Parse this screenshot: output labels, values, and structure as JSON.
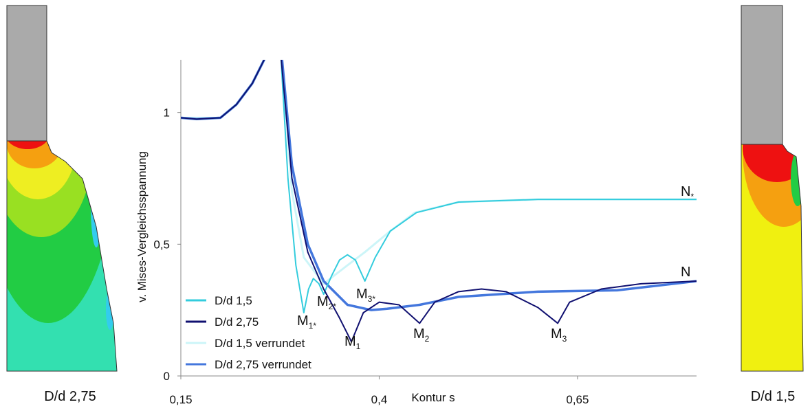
{
  "chart_data": {
    "type": "line",
    "ylabel": "v. Mises-Vergleichsspannung",
    "xlabel": "Kontur s",
    "xlim": [
      0.15,
      0.8
    ],
    "ylim": [
      0,
      1.2
    ],
    "xticks": [
      {
        "value": 0.15,
        "label": "0,15"
      },
      {
        "value": 0.4,
        "label": "0,4"
      },
      {
        "value": 0.65,
        "label": "0,65"
      }
    ],
    "yticks": [
      0,
      {
        "value": 0.5,
        "label": "0,5"
      },
      1
    ],
    "series": [
      {
        "name": "D/d 1,5",
        "color": "#33ccdd",
        "x": [
          0.15,
          0.17,
          0.2,
          0.22,
          0.24,
          0.255,
          0.265,
          0.27,
          0.276,
          0.285,
          0.295,
          0.305,
          0.311,
          0.317,
          0.324,
          0.33,
          0.34,
          0.35,
          0.36,
          0.37,
          0.382,
          0.395,
          0.414,
          0.447,
          0.5,
          0.6,
          0.7,
          0.8
        ],
        "values": [
          0.98,
          0.975,
          0.98,
          1.03,
          1.11,
          1.2,
          1.26,
          1.26,
          1.22,
          0.75,
          0.42,
          0.24,
          0.33,
          0.37,
          0.35,
          0.31,
          0.38,
          0.44,
          0.46,
          0.44,
          0.36,
          0.45,
          0.55,
          0.62,
          0.66,
          0.67,
          0.67,
          0.67
        ]
      },
      {
        "name": "D/d 2,75",
        "color": "#101070",
        "x": [
          0.15,
          0.17,
          0.2,
          0.22,
          0.24,
          0.255,
          0.265,
          0.27,
          0.276,
          0.29,
          0.31,
          0.33,
          0.35,
          0.365,
          0.38,
          0.4,
          0.425,
          0.451,
          0.47,
          0.5,
          0.529,
          0.56,
          0.6,
          0.625,
          0.64,
          0.68,
          0.73,
          0.8
        ],
        "values": [
          0.98,
          0.975,
          0.98,
          1.03,
          1.11,
          1.2,
          1.26,
          1.26,
          1.22,
          0.75,
          0.47,
          0.33,
          0.22,
          0.13,
          0.24,
          0.28,
          0.27,
          0.2,
          0.28,
          0.32,
          0.33,
          0.32,
          0.26,
          0.2,
          0.28,
          0.33,
          0.35,
          0.36
        ]
      },
      {
        "name": "D/d 1,5 verrundet",
        "color": "#ccf5f8",
        "x": [
          0.15,
          0.17,
          0.2,
          0.22,
          0.24,
          0.255,
          0.265,
          0.27,
          0.277,
          0.29,
          0.305,
          0.33,
          0.36,
          0.382,
          0.414,
          0.445,
          0.5,
          0.6,
          0.7,
          0.8
        ],
        "values": [
          0.98,
          0.98,
          0.98,
          1.03,
          1.11,
          1.2,
          1.26,
          1.26,
          1.22,
          0.7,
          0.45,
          0.35,
          0.42,
          0.47,
          0.55,
          0.62,
          0.66,
          0.67,
          0.67,
          0.67
        ]
      },
      {
        "name": "D/d 2,75 verrundet",
        "color": "#4477dd",
        "x": [
          0.15,
          0.17,
          0.2,
          0.22,
          0.24,
          0.255,
          0.265,
          0.27,
          0.277,
          0.29,
          0.31,
          0.33,
          0.36,
          0.39,
          0.41,
          0.451,
          0.5,
          0.6,
          0.7,
          0.8
        ],
        "values": [
          0.98,
          0.975,
          0.98,
          1.03,
          1.11,
          1.2,
          1.26,
          1.26,
          1.22,
          0.8,
          0.5,
          0.36,
          0.27,
          0.25,
          0.255,
          0.27,
          0.3,
          0.32,
          0.325,
          0.36
        ]
      }
    ],
    "annotations": [
      {
        "text": "M",
        "sub": "1*"
      },
      {
        "text": "M",
        "sub": "2*"
      },
      {
        "text": "M",
        "sub": "3*"
      },
      {
        "text": "M",
        "sub": "1"
      },
      {
        "text": "M",
        "sub": "2"
      },
      {
        "text": "M",
        "sub": "3"
      },
      {
        "text": "N",
        "sub": "*"
      },
      {
        "text": "N",
        "sub": ""
      }
    ]
  },
  "figures": {
    "left": "D/d 2,75",
    "right": "D/d 1,5"
  }
}
